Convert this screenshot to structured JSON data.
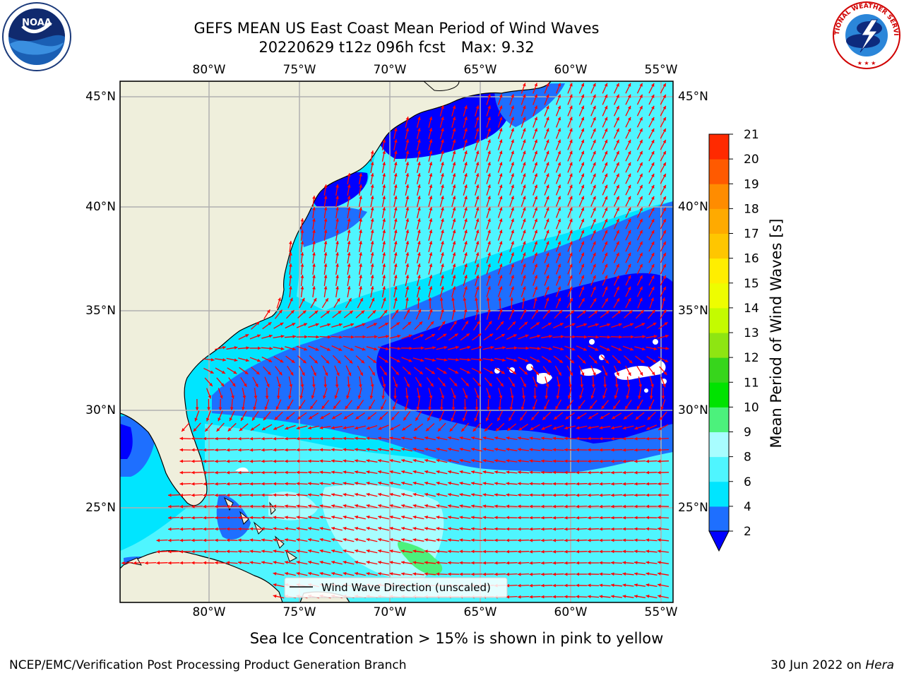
{
  "header": {
    "title_line1": "GEFS MEAN US East Coast Mean Period of Wind Waves",
    "title_date": "20220629 t12z 096h fcst",
    "title_max": "Max: 9.32"
  },
  "map": {
    "lon_labels": [
      "80°W",
      "75°W",
      "70°W",
      "65°W",
      "60°W",
      "55°W"
    ],
    "lat_labels": [
      "45°N",
      "40°N",
      "35°N",
      "30°N",
      "25°N"
    ],
    "legend_label": "Wind Wave Direction (unscaled)",
    "arrow_color": "#ff0000",
    "land_color": "#efefdc",
    "grid_color": "#b0b0b0"
  },
  "colorbar": {
    "label": "Mean Period of Wind Waves [s]",
    "ticks": [
      "2",
      "4",
      "6",
      "8",
      "9",
      "10",
      "11",
      "12",
      "13",
      "14",
      "15",
      "16",
      "17",
      "18",
      "19",
      "20",
      "21"
    ],
    "colors": [
      "#1e6fff",
      "#00e5ff",
      "#4ff5ff",
      "#a8fdff",
      "#4cf17c",
      "#00e300",
      "#37d51c",
      "#8ee512",
      "#c4fb00",
      "#eefd00",
      "#ffee00",
      "#ffc600",
      "#ffaa00",
      "#ff8c00",
      "#ff5a00",
      "#ff2a00",
      "#ff0000"
    ],
    "under_color": "#0000ff"
  },
  "footer": {
    "caption": "Sea Ice Concentration > 15% is shown in pink to yellow",
    "org": "NCEP/EMC/Verification Post Processing Product Generation Branch",
    "date": "30 Jun 2022 on",
    "machine": "Hera"
  },
  "logos": {
    "left": "NOAA",
    "right": "NATIONAL WEATHER SERVICE"
  }
}
